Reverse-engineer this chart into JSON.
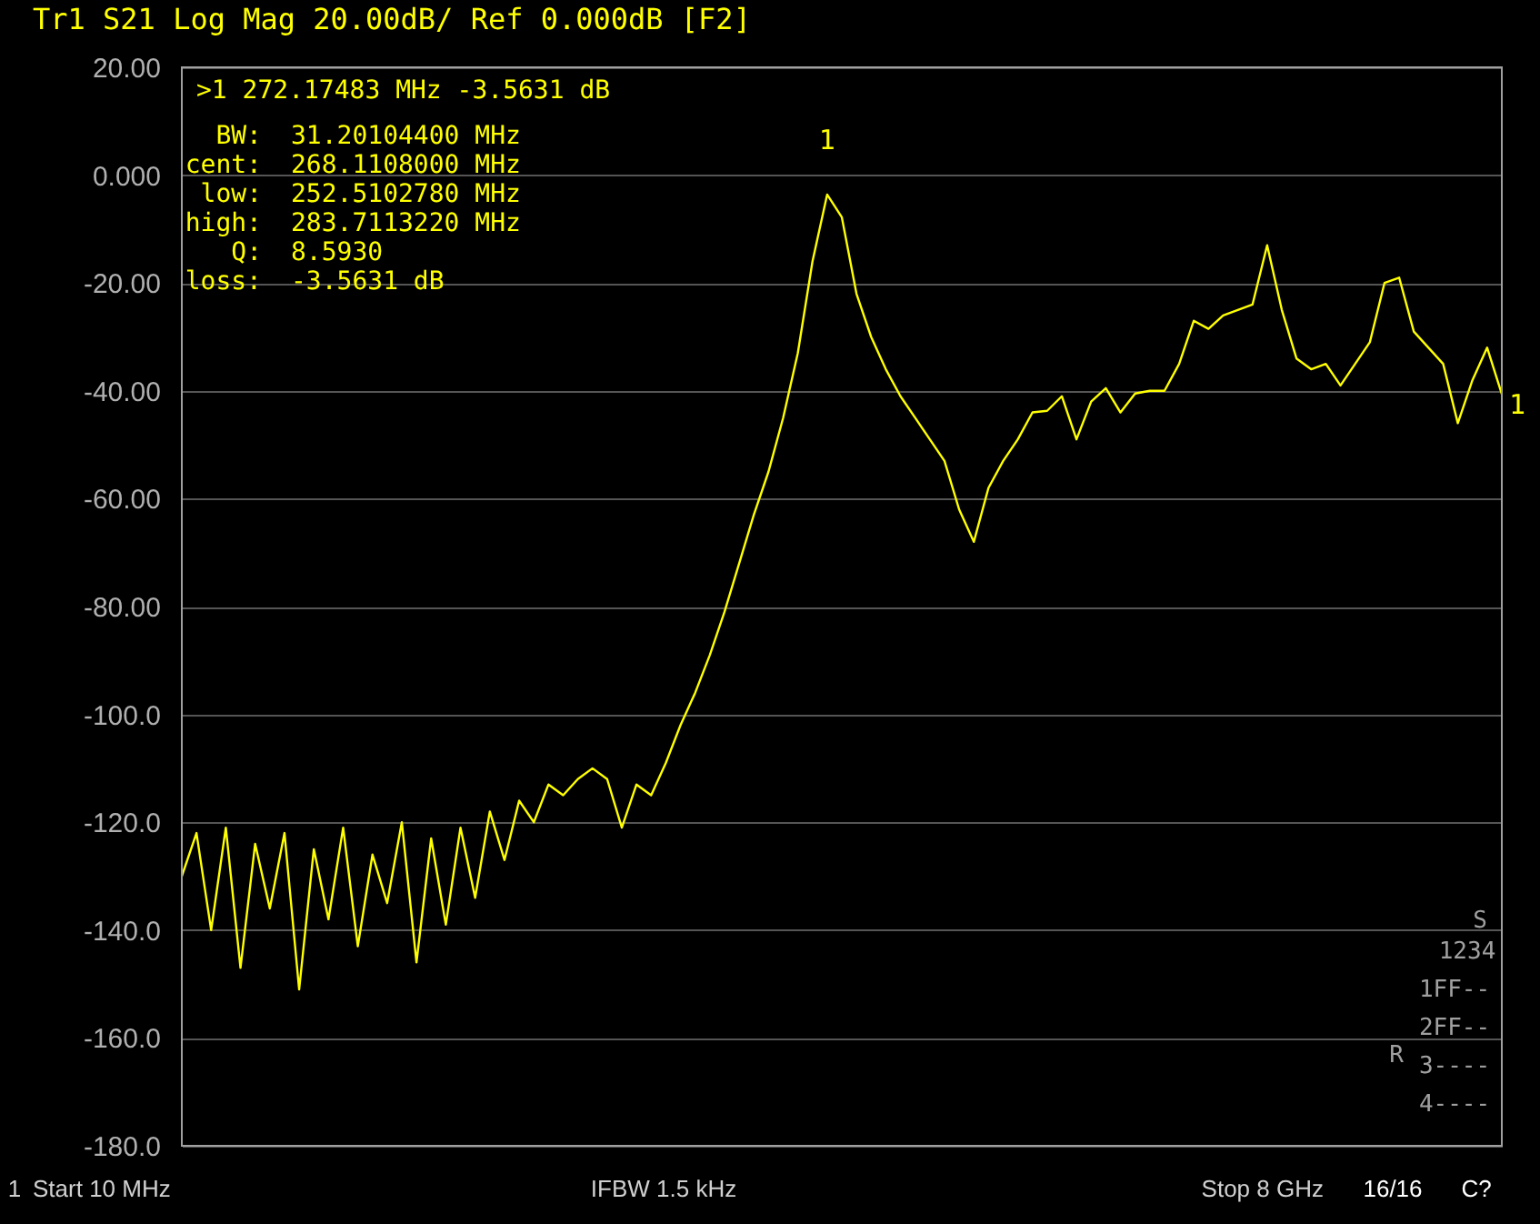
{
  "chart_data": {
    "type": "line",
    "title": "Tr1 S21 Log Mag 20.00dB/ Ref 0.000dB [F2]",
    "categories": [
      null,
      null,
      null,
      null,
      null,
      null,
      null,
      null,
      null,
      null,
      null,
      null,
      null,
      null,
      null,
      null,
      null,
      null,
      null,
      null,
      null,
      null,
      null,
      null,
      null,
      null,
      null,
      null,
      null,
      null,
      null,
      null,
      null,
      null,
      null,
      null,
      null,
      null,
      null,
      null,
      null,
      null,
      null,
      null,
      null,
      null,
      null,
      null,
      null,
      null,
      null,
      null,
      null,
      null,
      null,
      null,
      null,
      null,
      null,
      null,
      null,
      null,
      null,
      null,
      null,
      null,
      null,
      null,
      null,
      null,
      null,
      null,
      null,
      null,
      null,
      null,
      null,
      null,
      null,
      null,
      null,
      null,
      null,
      null,
      null,
      null,
      null,
      null,
      null,
      null,
      null
    ],
    "series": [
      {
        "color": "#ffff00",
        "values": [
          -130,
          -122,
          -140,
          -121,
          -147,
          -124,
          -136,
          -122,
          -151,
          -125,
          -138,
          -121,
          -143,
          -126,
          -135,
          -120,
          -146,
          -123,
          -139,
          -121,
          -134,
          -118,
          -127,
          -116,
          -120,
          -113,
          -115,
          -112,
          -110,
          -112,
          -121,
          -113,
          -115,
          -109,
          -102,
          -96,
          -89,
          -81,
          -72,
          -63,
          -55,
          -45,
          -33,
          -16,
          -3.6,
          -7.8,
          -22,
          -30,
          -36,
          -41,
          -45,
          -49,
          -53,
          -62,
          -68,
          -58,
          -53,
          -49,
          -44,
          -43.7,
          -41,
          -49,
          -42,
          -39.5,
          -44,
          -40.5,
          -40,
          -40,
          -35,
          -27,
          -28.5,
          -26,
          -25,
          -24,
          -13,
          -25,
          -34,
          -36,
          -35,
          -39,
          -35,
          -31,
          -20,
          -19,
          -29,
          -32,
          -35,
          -46,
          -38,
          -32,
          -40.6
        ]
      }
    ],
    "ylim": [
      -180,
      20
    ],
    "yticks": [
      {
        "value": 20,
        "label": "20.00"
      },
      {
        "value": 0,
        "label": "0.000"
      },
      {
        "value": -20,
        "label": "-20.00"
      },
      {
        "value": -40,
        "label": "-40.00"
      },
      {
        "value": -60,
        "label": "-60.00"
      },
      {
        "value": -80,
        "label": "-80.00"
      },
      {
        "value": -100,
        "label": "-100.0"
      },
      {
        "value": -120,
        "label": "-120.0"
      },
      {
        "value": -140,
        "label": "-140.0"
      },
      {
        "value": -160,
        "label": "-160.0"
      },
      {
        "value": -180,
        "label": "-180.0"
      }
    ],
    "grid": "y",
    "marker": "none",
    "line_style": "solid",
    "annotations": [
      ">1  272.17483 MHz -3.5631 dB",
      "BW:  31.20104400 MHz",
      "cent:  268.1108000 MHz",
      "low:  252.5102780 MHz",
      "high:  283.7113220 MHz",
      "Q:  8.5930",
      "loss:  -3.5631 dB",
      "1",
      "1",
      "1",
      "Start 10 MHz",
      "IFBW 1.5 kHz",
      "Stop 8 GHz",
      "16/16",
      "C?",
      "S",
      "1234",
      "1FF--",
      "2FF--",
      "R",
      "3----",
      "4----"
    ]
  }
}
